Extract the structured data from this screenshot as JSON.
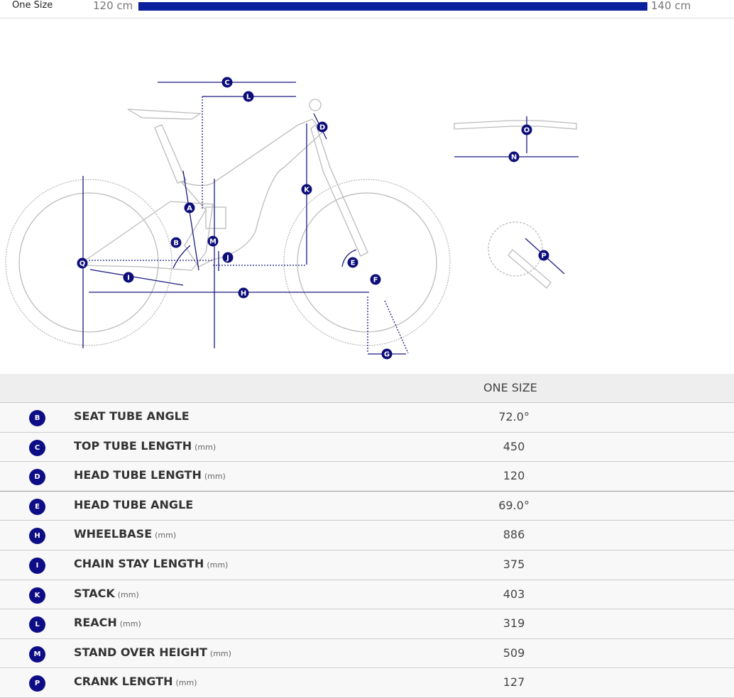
{
  "size_bar": {
    "size_name": "One Size",
    "min_label": "120 cm",
    "max_label": "140 cm",
    "fill_percent": 100,
    "color": "#0a1f9c"
  },
  "diagram": {
    "marker_color": "#0d0d7a",
    "markers": [
      "A",
      "B",
      "C",
      "D",
      "E",
      "F",
      "G",
      "H",
      "I",
      "J",
      "K",
      "L",
      "M",
      "N",
      "O",
      "P",
      "Q"
    ]
  },
  "table": {
    "column_header": "ONE SIZE",
    "badge_color": "#0d0d86",
    "rows": [
      {
        "letter": "B",
        "label": "SEAT TUBE ANGLE",
        "unit": "",
        "value": "72.0°"
      },
      {
        "letter": "C",
        "label": "TOP TUBE LENGTH",
        "unit": "(mm)",
        "value": "450"
      },
      {
        "letter": "D",
        "label": "HEAD TUBE LENGTH",
        "unit": "(mm)",
        "value": "120"
      },
      {
        "letter": "E",
        "label": "HEAD TUBE ANGLE",
        "unit": "",
        "value": "69.0°"
      },
      {
        "letter": "H",
        "label": "WHEELBASE",
        "unit": "(mm)",
        "value": "886"
      },
      {
        "letter": "I",
        "label": "CHAIN STAY LENGTH",
        "unit": "(mm)",
        "value": "375"
      },
      {
        "letter": "K",
        "label": "STACK",
        "unit": "(mm)",
        "value": "403"
      },
      {
        "letter": "L",
        "label": "REACH",
        "unit": "(mm)",
        "value": "319"
      },
      {
        "letter": "M",
        "label": "STAND OVER HEIGHT",
        "unit": "(mm)",
        "value": "509"
      },
      {
        "letter": "P",
        "label": "CRANK LENGTH",
        "unit": "(mm)",
        "value": "127"
      }
    ]
  }
}
